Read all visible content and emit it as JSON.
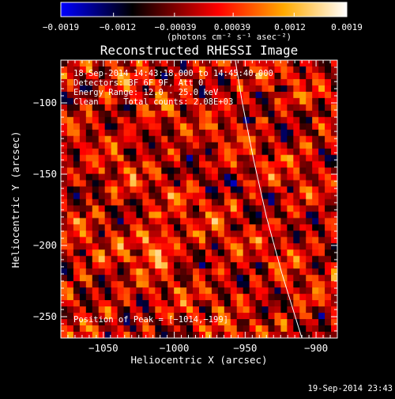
{
  "colorbar": {
    "tick_labels": [
      "−0.0019",
      "−0.0012",
      "−0.00039",
      "0.00039",
      "0.0012",
      "0.0019"
    ],
    "min": -0.0019,
    "max": 0.0019,
    "unit_text": "(photons cm⁻² s⁻¹ asec⁻²)",
    "colors": [
      "#0000ff",
      "#000000",
      "#ff0000",
      "#ffaa00",
      "#ffffff"
    ]
  },
  "chart_data": {
    "type": "heatmap",
    "title": "Reconstructed RHESSI Image",
    "xlabel": "Heliocentric X (arcsec)",
    "ylabel": "Heliocentric Y (arcsec)",
    "xlim": [
      -1080,
      -885
    ],
    "ylim": [
      -265,
      -70
    ],
    "x_ticks": [
      {
        "value": -1050,
        "label": "−1050"
      },
      {
        "value": -1000,
        "label": "−1000"
      },
      {
        "value": -950,
        "label": "−950"
      },
      {
        "value": -900,
        "label": "−900"
      }
    ],
    "y_ticks": [
      {
        "value": -100,
        "label": "−100"
      },
      {
        "value": -150,
        "label": "−150"
      },
      {
        "value": -200,
        "label": "−200"
      },
      {
        "value": -250,
        "label": "−250"
      }
    ],
    "annotations": [
      "18-Sep-2014 14:43:18.000 to 14:45:40.000",
      "Detectors: 3F 6F 9F, Att 0",
      "Energy Range: 12.0 - 25.0 keV",
      "Clean     Total counts: 2.08E+03"
    ],
    "peak_label": "Position of Peak = [−1014,−199]",
    "peak": {
      "x": -1014,
      "y": -199
    },
    "limb_points": [
      [
        -957,
        -70
      ],
      [
        -952,
        -100
      ],
      [
        -944,
        -140
      ],
      [
        -935,
        -180
      ],
      [
        -924,
        -220
      ],
      [
        -910,
        -265
      ]
    ],
    "grid": false
  },
  "footer": {
    "timestamp": "19-Sep-2014 23:43"
  }
}
